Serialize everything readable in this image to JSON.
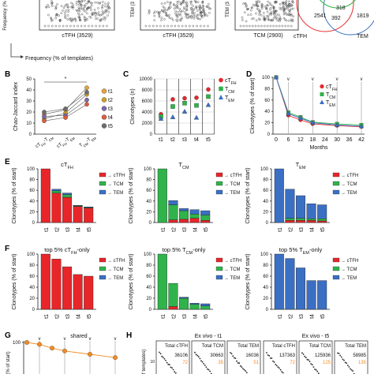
{
  "colors": {
    "cTFH": "#e8262a",
    "TCM": "#2fb34a",
    "TEM": "#3a6fc4",
    "shared": "#f08a24",
    "ink": "#111111"
  },
  "panel_letters": [
    "B",
    "C",
    "D",
    "E",
    "F",
    "G",
    "H"
  ],
  "top": {
    "scatter_titles": [
      "cTFH (3529)",
      "cTFH (3529)",
      "TCM (2900)"
    ],
    "ylabels": [
      "Frequency (%",
      "TEM (3",
      "TEM (3"
    ],
    "footer_label": "Frequency (% of templates)",
    "venn": {
      "counts": [
        "2541",
        "318",
        "392",
        "1819"
      ],
      "labels": [
        "cTFH",
        "TEM"
      ]
    }
  },
  "chart_data": [
    {
      "panel": "B",
      "type": "line",
      "ylabel": "Chao-Jaccard index",
      "categories": [
        "cTFH-TCM",
        "cTFH-TEM",
        "TCM-TEM"
      ],
      "ylim": [
        0,
        50
      ],
      "yticks": [
        0,
        10,
        20,
        30,
        40,
        50
      ],
      "annotation": "*",
      "series": [
        {
          "name": "t1",
          "color": "#e8a33a",
          "values": [
            18,
            22,
            42
          ]
        },
        {
          "name": "t2",
          "color": "#c9a227",
          "values": [
            14,
            19,
            36
          ]
        },
        {
          "name": "t3",
          "color": "#7c68b0",
          "values": [
            16,
            17,
            31
          ]
        },
        {
          "name": "t4",
          "color": "#e05b3a",
          "values": [
            12,
            15,
            27
          ]
        },
        {
          "name": "t5",
          "color": "#6d6d6d",
          "values": [
            20,
            23,
            38
          ]
        }
      ]
    },
    {
      "panel": "C",
      "type": "scatter",
      "ylabel": "Clonotypes (n)",
      "categories": [
        "t1",
        "t2",
        "t3",
        "t4",
        "t5"
      ],
      "ylim": [
        0,
        10000
      ],
      "yticks": [
        "0",
        "2000",
        "4000",
        "6000",
        "8000",
        "10000"
      ],
      "series": [
        {
          "name": "cTFH",
          "values": [
            3600,
            6300,
            6500,
            6600,
            8100
          ]
        },
        {
          "name": "TCM",
          "values": [
            3200,
            5000,
            5600,
            5200,
            6800
          ]
        },
        {
          "name": "TEM",
          "values": [
            2800,
            3100,
            4100,
            3000,
            5300
          ]
        }
      ]
    },
    {
      "panel": "D",
      "type": "line",
      "ylabel": "Clonotypes (% of start)",
      "xlabel": "Months",
      "xticks": [
        0,
        6,
        12,
        18,
        24,
        30,
        36,
        42
      ],
      "ylim": [
        0,
        100
      ],
      "yticks": [
        0,
        20,
        40,
        60,
        80,
        100
      ],
      "event_marker": "v",
      "event_months": [
        6,
        18,
        30,
        42
      ],
      "series": [
        {
          "name": "cTFH",
          "x": [
            0,
            6,
            12,
            18,
            30,
            42
          ],
          "values": [
            100,
            33,
            25,
            18,
            15,
            13
          ]
        },
        {
          "name": "TCM",
          "x": [
            0,
            6,
            12,
            18,
            30,
            42
          ],
          "values": [
            100,
            38,
            30,
            21,
            18,
            16
          ]
        },
        {
          "name": "TEM",
          "x": [
            0,
            6,
            12,
            18,
            30,
            42
          ],
          "values": [
            100,
            36,
            28,
            20,
            16,
            14
          ]
        }
      ]
    },
    {
      "panel": "E",
      "type": "bar",
      "stacked": true,
      "ylabel": "Clonotypes (% of start)",
      "categories": [
        "t1",
        "t2",
        "t3",
        "t4",
        "t5"
      ],
      "ylim": [
        0,
        100
      ],
      "yticks": [
        0,
        20,
        40,
        60,
        80,
        100
      ],
      "legend": [
        "→ cTFH",
        "→ TCM",
        "→ TEM"
      ],
      "groups": [
        {
          "title": "cTFH",
          "stacks": [
            [
              100,
              0,
              0
            ],
            [
              55,
              4,
              3
            ],
            [
              47,
              5,
              3
            ],
            [
              30,
              1,
              1
            ],
            [
              27,
              1,
              1
            ]
          ]
        },
        {
          "title": "TCM",
          "stacks": [
            [
              0,
              100,
              0
            ],
            [
              5,
              28,
              8
            ],
            [
              6,
              16,
              4
            ],
            [
              8,
              8,
              8
            ],
            [
              4,
              10,
              8
            ]
          ]
        },
        {
          "title": "TEM",
          "stacks": [
            [
              0,
              0,
              100
            ],
            [
              4,
              4,
              54
            ],
            [
              4,
              4,
              42
            ],
            [
              4,
              3,
              28
            ],
            [
              3,
              4,
              26
            ]
          ]
        }
      ]
    },
    {
      "panel": "F",
      "type": "bar",
      "stacked": true,
      "ylabel": "Clonotypes (% of start)",
      "categories": [
        "t1",
        "t2",
        "t3",
        "t4",
        "t5"
      ],
      "ylim": [
        0,
        100
      ],
      "yticks": [
        0,
        20,
        40,
        60,
        80,
        100
      ],
      "legend": [
        "→ cTFH",
        "→ TCM",
        "→ TEM"
      ],
      "groups": [
        {
          "title": "top 5% cTFH-only",
          "stacks": [
            [
              100,
              0,
              0
            ],
            [
              91,
              0,
              0
            ],
            [
              77,
              0,
              0
            ],
            [
              63,
              0,
              0
            ],
            [
              60,
              0,
              0
            ]
          ]
        },
        {
          "title": "top 5% TCM-only",
          "stacks": [
            [
              0,
              100,
              0
            ],
            [
              5,
              42,
              0
            ],
            [
              0,
              20,
              2
            ],
            [
              0,
              9,
              2
            ],
            [
              0,
              6,
              4
            ]
          ]
        },
        {
          "title": "top 5% TEM-only",
          "stacks": [
            [
              0,
              0,
              100
            ],
            [
              0,
              0,
              92
            ],
            [
              0,
              0,
              75
            ],
            [
              0,
              0,
              52
            ],
            [
              0,
              0,
              52
            ]
          ]
        }
      ]
    },
    {
      "panel": "G",
      "type": "line",
      "title": "shared",
      "ylabel": "(% of start)",
      "ylim": [
        0,
        100
      ],
      "yticks": [
        100
      ],
      "x": [
        0,
        6,
        12,
        18,
        30,
        42
      ],
      "values": [
        100,
        96,
        88,
        82,
        75,
        68
      ]
    },
    {
      "panel": "H",
      "type": "table",
      "groups": [
        {
          "title": "Ex vivo - t1",
          "cells": [
            {
              "label": "Total cTFH",
              "total": "36106",
              "shared": "72"
            },
            {
              "label": "Total TCM",
              "total": "30663",
              "shared": "35"
            },
            {
              "label": "Total TEM",
              "total": "16036",
              "shared": "51"
            }
          ]
        },
        {
          "title": "Ex vivo - t5",
          "cells": [
            {
              "label": "Total cTFH",
              "total": "137363",
              "shared": "72"
            },
            {
              "label": "Total TCM",
              "total": "125936",
              "shared": "125"
            },
            {
              "label": "Total TEM",
              "total": "58985",
              "shared": "135"
            }
          ]
        }
      ],
      "ylabel": "of templates)",
      "ytick": "10"
    }
  ]
}
